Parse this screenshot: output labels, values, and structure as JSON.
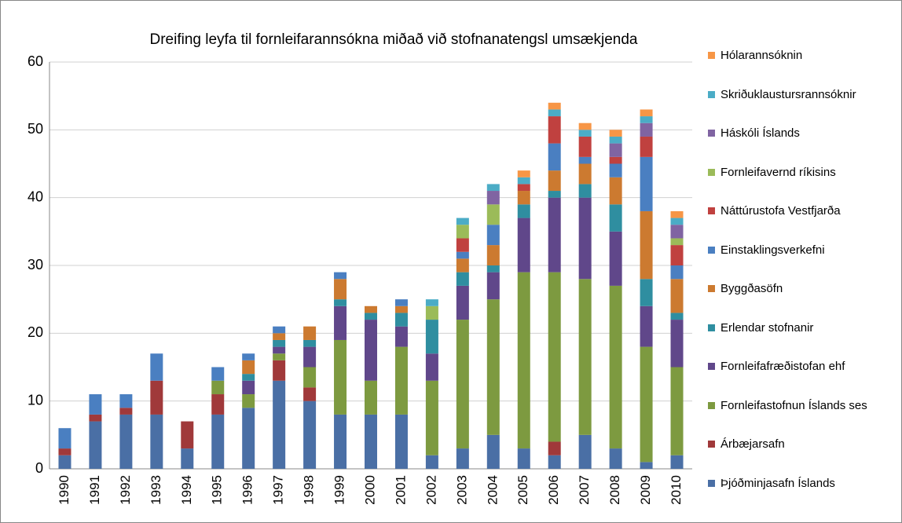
{
  "chart_data": {
    "type": "bar",
    "stacked": true,
    "title": "Dreifing leyfa til fornleifarannsókna  miðað við stofnanatengsl umsækjenda",
    "categories": [
      "1990",
      "1991",
      "1992",
      "1993",
      "1994",
      "1995",
      "1996",
      "1997",
      "1998",
      "1999",
      "2000",
      "2001",
      "2002",
      "2003",
      "2004",
      "2005",
      "2006",
      "2007",
      "2008",
      "2009",
      "2010"
    ],
    "ylim": [
      0,
      60
    ],
    "yticks": [
      0,
      10,
      20,
      30,
      40,
      50,
      60
    ],
    "grid": true,
    "legend": "right",
    "series": [
      {
        "name": "Þjóðminjasafn Íslands",
        "color": "#4a6fa5",
        "values": [
          2,
          7,
          8,
          8,
          3,
          8,
          9,
          13,
          10,
          8,
          8,
          8,
          2,
          3,
          5,
          3,
          2,
          5,
          3,
          1,
          2
        ]
      },
      {
        "name": "Árbæjarsafn",
        "color": "#a0393a",
        "values": [
          1,
          1,
          1,
          5,
          4,
          3,
          0,
          3,
          2,
          0,
          0,
          0,
          0,
          0,
          0,
          0,
          2,
          0,
          0,
          0,
          0
        ]
      },
      {
        "name": "Fornleifastofnun Íslands ses",
        "color": "#7d9a40",
        "values": [
          0,
          0,
          0,
          0,
          0,
          2,
          2,
          1,
          3,
          11,
          5,
          10,
          11,
          19,
          20,
          26,
          25,
          23,
          24,
          17,
          13
        ]
      },
      {
        "name": "Fornleifafræðistofan ehf",
        "color": "#60478a",
        "values": [
          0,
          0,
          0,
          0,
          0,
          0,
          2,
          1,
          3,
          5,
          9,
          3,
          4,
          5,
          4,
          8,
          11,
          12,
          8,
          6,
          7
        ]
      },
      {
        "name": "Erlendar stofnanir",
        "color": "#2f8ea0",
        "values": [
          0,
          0,
          0,
          0,
          0,
          0,
          1,
          1,
          1,
          1,
          1,
          2,
          5,
          2,
          1,
          2,
          1,
          2,
          4,
          4,
          1
        ]
      },
      {
        "name": "Byggðasöfn",
        "color": "#cc7a30",
        "values": [
          0,
          0,
          0,
          0,
          0,
          0,
          2,
          1,
          2,
          3,
          1,
          1,
          0,
          2,
          3,
          2,
          3,
          3,
          4,
          10,
          5
        ]
      },
      {
        "name": "Einstaklingsverkefni",
        "color": "#4a7fc1",
        "values": [
          3,
          3,
          2,
          4,
          0,
          2,
          1,
          1,
          0,
          1,
          0,
          1,
          0,
          1,
          3,
          0,
          4,
          1,
          2,
          8,
          2
        ]
      },
      {
        "name": "Náttúrustofa Vestfjarða",
        "color": "#c0413f",
        "values": [
          0,
          0,
          0,
          0,
          0,
          0,
          0,
          0,
          0,
          0,
          0,
          0,
          0,
          2,
          0,
          1,
          4,
          3,
          1,
          3,
          3
        ]
      },
      {
        "name": "Fornleifavernd ríkisins",
        "color": "#9bbb59",
        "values": [
          0,
          0,
          0,
          0,
          0,
          0,
          0,
          0,
          0,
          0,
          0,
          0,
          2,
          2,
          3,
          0,
          0,
          0,
          0,
          0,
          1
        ]
      },
      {
        "name": "Háskóli Íslands",
        "color": "#8064a2",
        "values": [
          0,
          0,
          0,
          0,
          0,
          0,
          0,
          0,
          0,
          0,
          0,
          0,
          0,
          0,
          2,
          0,
          0,
          0,
          2,
          2,
          2
        ]
      },
      {
        "name": "Skriðuklaustursrannsóknir",
        "color": "#4bacc6",
        "values": [
          0,
          0,
          0,
          0,
          0,
          0,
          0,
          0,
          0,
          0,
          0,
          0,
          1,
          1,
          1,
          1,
          1,
          1,
          1,
          1,
          1
        ]
      },
      {
        "name": "Hólarannsóknin",
        "color": "#f79646",
        "values": [
          0,
          0,
          0,
          0,
          0,
          0,
          0,
          0,
          0,
          0,
          0,
          0,
          0,
          0,
          0,
          1,
          1,
          1,
          1,
          1,
          1
        ]
      }
    ]
  }
}
